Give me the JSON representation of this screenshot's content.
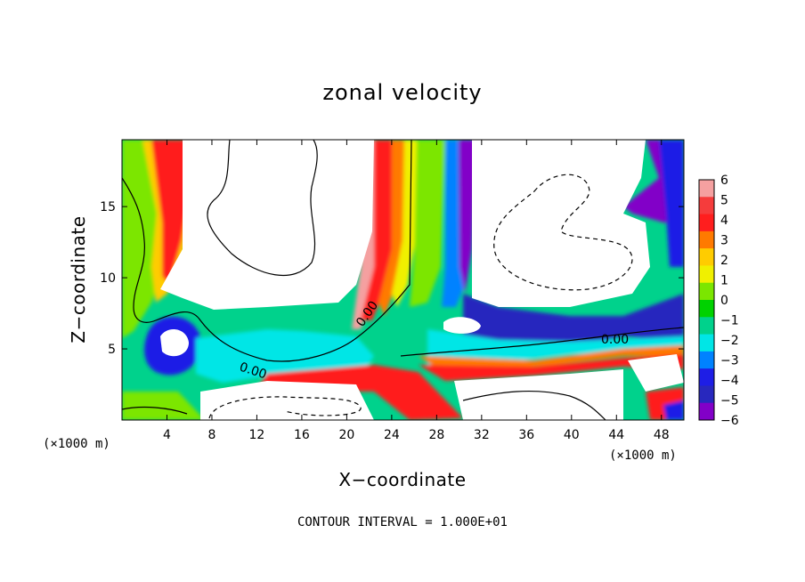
{
  "chart_data": {
    "type": "heatmap",
    "title": "zonal velocity",
    "xlabel": "X−coordinate",
    "ylabel": "Z−coordinate",
    "x_unit": "(×1000 m)",
    "y_unit": "(×1000 m)",
    "x_ticks": [
      4,
      8,
      12,
      16,
      20,
      24,
      28,
      32,
      36,
      40,
      44,
      48
    ],
    "y_ticks": [
      5,
      10,
      15
    ],
    "xlim": [
      0,
      50
    ],
    "ylim": [
      0,
      19.7
    ],
    "zlim": [
      -6,
      6
    ],
    "colorbar_ticks": [
      "6",
      "5",
      "4",
      "3",
      "2",
      "1",
      "0",
      "−1",
      "−2",
      "−3",
      "−4",
      "−5",
      "−6"
    ],
    "colorbar_colors": [
      "#f5a0a0",
      "#f53c3c",
      "#ff1e1e",
      "#ff7a00",
      "#ffcc00",
      "#f0f000",
      "#7be600",
      "#00d200",
      "#00d28c",
      "#00e6e6",
      "#0082ff",
      "#1e1ee6",
      "#2828be",
      "#8200c8"
    ],
    "contour_labels": [
      "0.00",
      "0.00",
      "0.00"
    ],
    "contour_interval_text": "CONTOUR INTERVAL = 1.000E+01",
    "legend": "right"
  }
}
